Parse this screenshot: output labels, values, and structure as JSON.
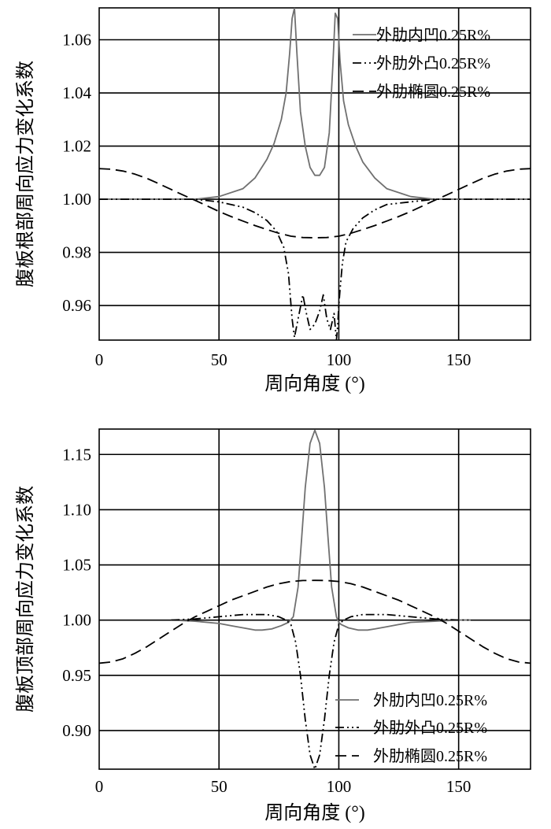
{
  "chart_data": [
    {
      "type": "line",
      "ylabel": "腹板根部周向应力变化系数",
      "xlabel": "周向角度 (°)",
      "xlim": [
        0,
        180
      ],
      "ylim": [
        0.947,
        1.072
      ],
      "xticks": [
        0,
        50,
        100,
        150
      ],
      "yticks": [
        0.96,
        0.98,
        1.0,
        1.02,
        1.04,
        1.06
      ],
      "ytick_labels": [
        "0.96",
        "0.98",
        "1.00",
        "1.02",
        "1.04",
        "1.06"
      ],
      "grid": true,
      "legend_position": "top-right",
      "series": [
        {
          "name": "外肋内凹0.25R%",
          "style": "solid",
          "color": "#707070",
          "x": [
            0,
            20,
            40,
            50,
            60,
            65,
            70,
            73,
            76,
            78,
            79.5,
            80.5,
            81.5,
            82.5,
            84,
            86,
            88,
            90,
            92,
            94,
            96,
            97.5,
            98.5,
            99.5,
            100.5,
            102,
            104,
            107,
            110,
            115,
            120,
            130,
            140,
            160,
            180
          ],
          "y": [
            1.0,
            1.0,
            1.0,
            1.001,
            1.004,
            1.008,
            1.015,
            1.021,
            1.03,
            1.04,
            1.055,
            1.068,
            1.072,
            1.055,
            1.033,
            1.02,
            1.012,
            1.009,
            1.009,
            1.012,
            1.025,
            1.05,
            1.07,
            1.068,
            1.052,
            1.037,
            1.028,
            1.02,
            1.014,
            1.008,
            1.004,
            1.001,
            1.0,
            1.0,
            1.0
          ]
        },
        {
          "name": "外肋外凸0.25R%",
          "style": "dash-dot-dot",
          "color": "#000000",
          "x": [
            0,
            40,
            50,
            60,
            65,
            70,
            74,
            77,
            79,
            80.5,
            81.5,
            83,
            85,
            86.5,
            88,
            90,
            92,
            93.5,
            95,
            96.5,
            98,
            99,
            99.5,
            100,
            100.5,
            101.5,
            103,
            106,
            110,
            115,
            120,
            130,
            140,
            180
          ],
          "y": [
            1.0,
            1.0,
            0.999,
            0.997,
            0.995,
            0.992,
            0.988,
            0.982,
            0.972,
            0.955,
            0.948,
            0.955,
            0.964,
            0.957,
            0.951,
            0.953,
            0.958,
            0.964,
            0.955,
            0.951,
            0.957,
            0.947,
            0.952,
            0.96,
            0.966,
            0.976,
            0.984,
            0.989,
            0.993,
            0.996,
            0.998,
            0.999,
            1.0,
            1.0
          ]
        },
        {
          "name": "外肋椭圆0.25R%",
          "style": "dashed",
          "color": "#000000",
          "x": [
            0,
            5,
            10,
            15,
            20,
            25,
            30,
            35,
            40,
            45,
            50,
            55,
            60,
            65,
            70,
            75,
            80,
            85,
            90,
            95,
            100,
            105,
            110,
            115,
            120,
            125,
            130,
            135,
            140,
            145,
            150,
            155,
            160,
            165,
            170,
            175,
            180
          ],
          "y": [
            1.0115,
            1.0113,
            1.0106,
            1.0094,
            1.0078,
            1.0058,
            1.0037,
            1.0016,
            0.9996,
            0.9975,
            0.9954,
            0.9935,
            0.9918,
            0.9901,
            0.9886,
            0.9872,
            0.9861,
            0.9856,
            0.9855,
            0.9856,
            0.9861,
            0.9872,
            0.9886,
            0.9901,
            0.9918,
            0.9935,
            0.9954,
            0.9975,
            0.9996,
            1.0016,
            1.0037,
            1.0058,
            1.0078,
            1.0094,
            1.0106,
            1.0113,
            1.0115
          ]
        }
      ]
    },
    {
      "type": "line",
      "ylabel": "腹板顶部周向应力变化系数",
      "xlabel": "周向角度 (°)",
      "xlim": [
        0,
        180
      ],
      "ylim": [
        0.865,
        1.173
      ],
      "xticks": [
        0,
        50,
        100,
        150
      ],
      "yticks": [
        0.9,
        0.95,
        1.0,
        1.05,
        1.1,
        1.15
      ],
      "ytick_labels": [
        "0.90",
        "0.95",
        "1.00",
        "1.05",
        "1.10",
        "1.15"
      ],
      "grid": true,
      "legend_position": "bottom-right",
      "series": [
        {
          "name": "外肋内凹0.25R%",
          "style": "solid",
          "color": "#707070",
          "x": [
            30,
            40,
            50,
            55,
            60,
            65,
            68,
            72,
            76,
            79,
            81,
            83,
            84.5,
            86,
            88,
            90,
            92,
            94,
            95.5,
            97,
            99,
            100,
            101,
            104,
            108,
            112,
            115,
            120,
            125,
            130,
            140,
            150,
            155
          ],
          "y": [
            1.0,
            0.999,
            0.997,
            0.995,
            0.993,
            0.991,
            0.991,
            0.992,
            0.995,
            0.998,
            1.003,
            1.03,
            1.075,
            1.12,
            1.16,
            1.172,
            1.16,
            1.12,
            1.075,
            1.03,
            1.003,
            0.998,
            0.996,
            0.993,
            0.991,
            0.991,
            0.992,
            0.994,
            0.996,
            0.998,
            0.999,
            1.0,
            1.0
          ]
        },
        {
          "name": "外肋外凸0.25R%",
          "style": "dash-dot-dot",
          "color": "#000000",
          "x": [
            30,
            40,
            45,
            50,
            55,
            60,
            65,
            70,
            75,
            78,
            80,
            82,
            84,
            86,
            88,
            90,
            92,
            94,
            96,
            98,
            100,
            102,
            105,
            110,
            115,
            120,
            125,
            130,
            135,
            140,
            150,
            155
          ],
          "y": [
            1.0,
            1.001,
            1.002,
            1.003,
            1.004,
            1.005,
            1.005,
            1.005,
            1.003,
            1.0,
            0.996,
            0.98,
            0.95,
            0.91,
            0.878,
            0.865,
            0.878,
            0.91,
            0.95,
            0.98,
            0.996,
            1.0,
            1.003,
            1.005,
            1.005,
            1.005,
            1.004,
            1.003,
            1.002,
            1.001,
            1.0,
            1.0
          ]
        },
        {
          "name": "外肋椭圆0.25R%",
          "style": "dashed",
          "color": "#000000",
          "x": [
            0,
            5,
            10,
            15,
            20,
            25,
            30,
            35,
            40,
            45,
            50,
            55,
            60,
            65,
            70,
            75,
            80,
            85,
            90,
            95,
            100,
            105,
            110,
            115,
            120,
            125,
            130,
            135,
            140,
            145,
            150,
            155,
            160,
            165,
            170,
            175,
            180
          ],
          "y": [
            0.961,
            0.962,
            0.965,
            0.97,
            0.976,
            0.983,
            0.99,
            0.997,
            1.003,
            1.008,
            1.013,
            1.018,
            1.022,
            1.026,
            1.03,
            1.033,
            1.035,
            1.0358,
            1.036,
            1.0358,
            1.035,
            1.033,
            1.03,
            1.026,
            1.022,
            1.018,
            1.013,
            1.008,
            1.003,
            0.997,
            0.99,
            0.983,
            0.976,
            0.97,
            0.965,
            0.962,
            0.961
          ]
        }
      ]
    }
  ]
}
